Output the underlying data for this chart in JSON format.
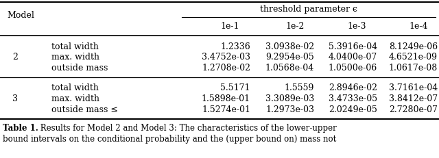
{
  "header_col1": "Model",
  "header_span": "threshold parameter ϵ",
  "subheaders": [
    "1e-1",
    "1e-2",
    "1e-3",
    "1e-4"
  ],
  "rows": [
    {
      "model": "2",
      "metrics": [
        {
          "label": "total width",
          "values": [
            "1.2336",
            "3.0938e-02",
            "5.3916e-04",
            "8.1249e-06"
          ]
        },
        {
          "label": "max. width",
          "values": [
            "3.4752e-03",
            "9.2954e-05",
            "4.0400e-07",
            "4.6521e-09"
          ]
        },
        {
          "label": "outside mass",
          "values": [
            "1.2708e-02",
            "1.0568e-04",
            "1.0500e-06",
            "1.0617e-08"
          ]
        }
      ]
    },
    {
      "model": "3",
      "metrics": [
        {
          "label": "total width",
          "values": [
            "5.5171",
            "1.5559",
            "2.8946e-02",
            "3.7161e-04"
          ]
        },
        {
          "label": "max. width",
          "values": [
            "1.5898e-01",
            "3.3089e-03",
            "3.4733e-05",
            "3.8412e-07"
          ]
        },
        {
          "label": "outside mass ≤",
          "values": [
            "1.5274e-01",
            "1.2973e-03",
            "2.0249e-05",
            "2.7280e-07"
          ]
        }
      ]
    }
  ],
  "caption_bold": "Table 1.",
  "caption_normal": " Results for Model 2 and Model 3: The characteristics of the lower-upper",
  "caption_line2": "bound intervals on the conditional probability and the (upper bound on) mass not",
  "figsize": [
    6.4,
    2.32
  ],
  "dpi": 100
}
